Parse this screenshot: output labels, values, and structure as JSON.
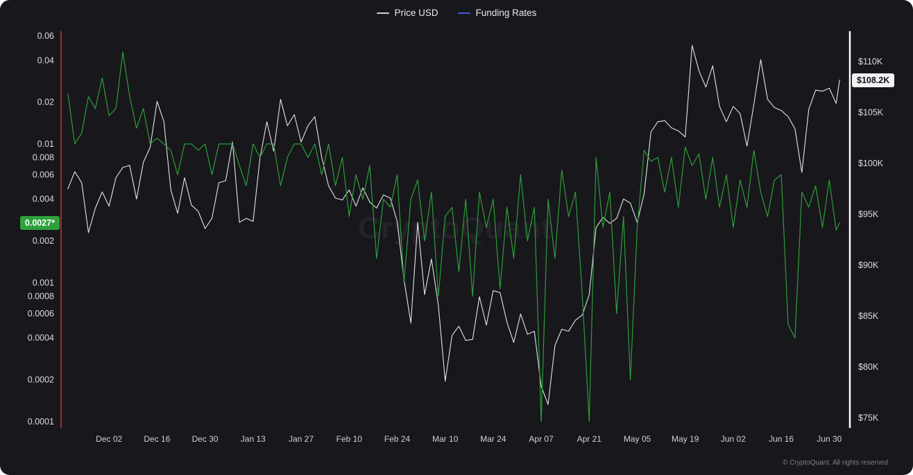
{
  "watermark": "CryptoQuant",
  "footer": "© CryptoQuant. All rights reserved",
  "chart_data": {
    "type": "line",
    "title": "",
    "legend": [
      {
        "label": "Price USD",
        "color": "#d2d2d6"
      },
      {
        "label": "Funding Rates",
        "color": "#4458e3"
      }
    ],
    "colors": {
      "background": "#17171c",
      "left_marker_line": "#c23b3b",
      "right_axis_line": "#ffffff"
    },
    "x_axis": {
      "range": [
        "2024-11-18",
        "2025-07-06"
      ],
      "ticks": [
        {
          "label": "Dec 02",
          "date": "2024-12-02"
        },
        {
          "label": "Dec 16",
          "date": "2024-12-16"
        },
        {
          "label": "Dec 30",
          "date": "2024-12-30"
        },
        {
          "label": "Jan 13",
          "date": "2025-01-13"
        },
        {
          "label": "Jan 27",
          "date": "2025-01-27"
        },
        {
          "label": "Feb 10",
          "date": "2025-02-10"
        },
        {
          "label": "Feb 24",
          "date": "2025-02-24"
        },
        {
          "label": "Mar 10",
          "date": "2025-03-10"
        },
        {
          "label": "Mar 24",
          "date": "2025-03-24"
        },
        {
          "label": "Apr 07",
          "date": "2025-04-07"
        },
        {
          "label": "Apr 21",
          "date": "2025-04-21"
        },
        {
          "label": "May 05",
          "date": "2025-05-05"
        },
        {
          "label": "May 19",
          "date": "2025-05-19"
        },
        {
          "label": "Jun 02",
          "date": "2025-06-02"
        },
        {
          "label": "Jun 16",
          "date": "2025-06-16"
        },
        {
          "label": "Jun 30",
          "date": "2025-06-30"
        }
      ]
    },
    "left_axis": {
      "scale": "log",
      "range": [
        9e-05,
        0.065
      ],
      "last_value": 0.0027,
      "last_value_label": "0.0027*",
      "badge_color": "#2fa13c",
      "ticks": [
        {
          "label": "0.06",
          "value": 0.06
        },
        {
          "label": "0.04",
          "value": 0.04
        },
        {
          "label": "0.02",
          "value": 0.02
        },
        {
          "label": "0.01",
          "value": 0.01
        },
        {
          "label": "0.008",
          "value": 0.008
        },
        {
          "label": "0.006",
          "value": 0.006
        },
        {
          "label": "0.004",
          "value": 0.004
        },
        {
          "label": "0.002",
          "value": 0.002
        },
        {
          "label": "0.001",
          "value": 0.001
        },
        {
          "label": "0.0008",
          "value": 0.0008
        },
        {
          "label": "0.0006",
          "value": 0.0006
        },
        {
          "label": "0.0004",
          "value": 0.0004
        },
        {
          "label": "0.0002",
          "value": 0.0002
        },
        {
          "label": "0.0001",
          "value": 0.0001
        }
      ]
    },
    "right_axis": {
      "scale": "linear",
      "range": [
        74000,
        113000
      ],
      "last_value": 108200,
      "last_value_label": "$108.2K",
      "ticks": [
        {
          "label": "$110K",
          "value": 110000
        },
        {
          "label": "$105K",
          "value": 105000
        },
        {
          "label": "$100K",
          "value": 100000
        },
        {
          "label": "$95K",
          "value": 95000
        },
        {
          "label": "$90K",
          "value": 90000
        },
        {
          "label": "$85K",
          "value": 85000
        },
        {
          "label": "$80K",
          "value": 80000
        },
        {
          "label": "$75K",
          "value": 75000
        }
      ]
    },
    "dates": [
      "2024-11-20",
      "2024-11-22",
      "2024-11-24",
      "2024-11-26",
      "2024-11-28",
      "2024-11-30",
      "2024-12-02",
      "2024-12-04",
      "2024-12-06",
      "2024-12-08",
      "2024-12-10",
      "2024-12-12",
      "2024-12-14",
      "2024-12-16",
      "2024-12-18",
      "2024-12-20",
      "2024-12-22",
      "2024-12-24",
      "2024-12-26",
      "2024-12-28",
      "2024-12-30",
      "2025-01-01",
      "2025-01-03",
      "2025-01-05",
      "2025-01-07",
      "2025-01-09",
      "2025-01-11",
      "2025-01-13",
      "2025-01-15",
      "2025-01-17",
      "2025-01-19",
      "2025-01-21",
      "2025-01-23",
      "2025-01-25",
      "2025-01-27",
      "2025-01-29",
      "2025-01-31",
      "2025-02-02",
      "2025-02-04",
      "2025-02-06",
      "2025-02-08",
      "2025-02-10",
      "2025-02-12",
      "2025-02-14",
      "2025-02-16",
      "2025-02-18",
      "2025-02-20",
      "2025-02-22",
      "2025-02-24",
      "2025-02-26",
      "2025-02-28",
      "2025-03-02",
      "2025-03-04",
      "2025-03-06",
      "2025-03-08",
      "2025-03-10",
      "2025-03-12",
      "2025-03-14",
      "2025-03-16",
      "2025-03-18",
      "2025-03-20",
      "2025-03-22",
      "2025-03-24",
      "2025-03-26",
      "2025-03-28",
      "2025-03-30",
      "2025-04-01",
      "2025-04-03",
      "2025-04-05",
      "2025-04-07",
      "2025-04-09",
      "2025-04-11",
      "2025-04-13",
      "2025-04-15",
      "2025-04-17",
      "2025-04-19",
      "2025-04-21",
      "2025-04-23",
      "2025-04-25",
      "2025-04-27",
      "2025-04-29",
      "2025-05-01",
      "2025-05-03",
      "2025-05-05",
      "2025-05-07",
      "2025-05-09",
      "2025-05-11",
      "2025-05-13",
      "2025-05-15",
      "2025-05-17",
      "2025-05-19",
      "2025-05-21",
      "2025-05-23",
      "2025-05-25",
      "2025-05-27",
      "2025-05-29",
      "2025-05-31",
      "2025-06-02",
      "2025-06-04",
      "2025-06-06",
      "2025-06-08",
      "2025-06-10",
      "2025-06-12",
      "2025-06-14",
      "2025-06-16",
      "2025-06-18",
      "2025-06-20",
      "2025-06-22",
      "2025-06-24",
      "2025-06-26",
      "2025-06-28",
      "2025-06-30",
      "2025-07-02",
      "2025-07-03"
    ],
    "series": [
      {
        "name": "Price USD",
        "axis": "right",
        "color": "#e6e6ea",
        "width": 1.1,
        "values": [
          97500,
          99200,
          98100,
          93200,
          95600,
          97200,
          95800,
          98600,
          99600,
          99800,
          96500,
          100100,
          101600,
          106100,
          104100,
          97400,
          95100,
          98600,
          95900,
          95300,
          93600,
          94600,
          98100,
          98300,
          102100,
          94200,
          94600,
          94300,
          100500,
          104100,
          101200,
          106300,
          103700,
          104800,
          102100,
          103700,
          104600,
          100600,
          97800,
          96600,
          96400,
          97400,
          95800,
          97600,
          96200,
          95600,
          96900,
          96600,
          94300,
          88600,
          84300,
          94200,
          87100,
          90600,
          86100,
          78600,
          83100,
          84000,
          82600,
          82700,
          86900,
          84100,
          87500,
          87300,
          84400,
          82400,
          85200,
          83200,
          83500,
          78100,
          76300,
          82100,
          83700,
          83500,
          84600,
          85100,
          87100,
          93700,
          94700,
          94100,
          94600,
          96500,
          96100,
          94200,
          97000,
          103100,
          104100,
          104200,
          103500,
          103200,
          102600,
          111600,
          109100,
          107500,
          109600,
          105600,
          104100,
          105600,
          104900,
          101700,
          105800,
          110200,
          106300,
          105500,
          105200,
          104600,
          103400,
          99100,
          105300,
          107200,
          107100,
          107400,
          105900,
          108200
        ]
      },
      {
        "name": "Funding Rates",
        "axis": "left",
        "color": "#2f9e38",
        "width": 1.2,
        "values": [
          0.023,
          0.01,
          0.012,
          0.022,
          0.018,
          0.03,
          0.016,
          0.018,
          0.046,
          0.022,
          0.013,
          0.018,
          0.01,
          0.011,
          0.01,
          0.009,
          0.006,
          0.01,
          0.01,
          0.009,
          0.01,
          0.006,
          0.01,
          0.01,
          0.01,
          0.007,
          0.005,
          0.01,
          0.008,
          0.01,
          0.01,
          0.005,
          0.008,
          0.01,
          0.01,
          0.008,
          0.01,
          0.006,
          0.01,
          0.005,
          0.008,
          0.003,
          0.006,
          0.004,
          0.007,
          0.0015,
          0.004,
          0.0035,
          0.006,
          0.001,
          0.004,
          0.0055,
          0.002,
          0.0045,
          0.0008,
          0.003,
          0.0035,
          0.0012,
          0.004,
          0.0008,
          0.0045,
          0.0025,
          0.004,
          0.0009,
          0.0035,
          0.0015,
          0.006,
          0.002,
          0.0035,
          0.0001,
          0.004,
          0.0015,
          0.0065,
          0.003,
          0.0045,
          0.0008,
          0.0001,
          0.008,
          0.0025,
          0.0045,
          0.0006,
          0.003,
          0.0002,
          0.0025,
          0.009,
          0.0075,
          0.008,
          0.0045,
          0.008,
          0.0035,
          0.0095,
          0.007,
          0.0085,
          0.004,
          0.008,
          0.0035,
          0.006,
          0.0025,
          0.0055,
          0.0035,
          0.009,
          0.0045,
          0.003,
          0.0055,
          0.006,
          0.0005,
          0.0004,
          0.0045,
          0.0035,
          0.005,
          0.0025,
          0.0055,
          0.0024,
          0.0027
        ]
      }
    ]
  }
}
